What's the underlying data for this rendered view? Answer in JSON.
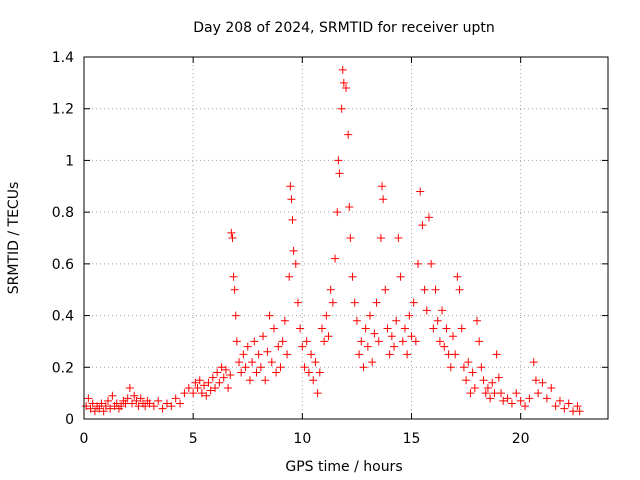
{
  "chart_data": {
    "type": "scatter",
    "title": "Day 208 of 2024, SRMTID for receiver uptn",
    "xlabel": "GPS time / hours",
    "ylabel": "SRMTID / TECUs",
    "xlim": [
      0,
      24
    ],
    "ylim": [
      0,
      1.4
    ],
    "xticks": [
      0,
      5,
      10,
      15,
      20
    ],
    "yticks": [
      0,
      0.2,
      0.4,
      0.6,
      0.8,
      1,
      1.2,
      1.4
    ],
    "xtick_labels": [
      "0",
      "5",
      "10",
      "15",
      "20"
    ],
    "ytick_labels": [
      "0",
      "0.2",
      "0.4",
      "0.6",
      "0.8",
      "1",
      "1.2",
      "1.4"
    ],
    "grid": true,
    "marker": "+",
    "color": "#ff0000",
    "series": [
      {
        "name": "SRMTID",
        "points": [
          [
            0.1,
            0.05
          ],
          [
            0.2,
            0.08
          ],
          [
            0.3,
            0.04
          ],
          [
            0.4,
            0.06
          ],
          [
            0.5,
            0.03
          ],
          [
            0.6,
            0.05
          ],
          [
            0.7,
            0.04
          ],
          [
            0.8,
            0.06
          ],
          [
            0.9,
            0.03
          ],
          [
            1.0,
            0.05
          ],
          [
            1.1,
            0.07
          ],
          [
            1.2,
            0.04
          ],
          [
            1.3,
            0.09
          ],
          [
            1.4,
            0.05
          ],
          [
            1.5,
            0.06
          ],
          [
            1.6,
            0.04
          ],
          [
            1.7,
            0.05
          ],
          [
            1.8,
            0.07
          ],
          [
            1.9,
            0.06
          ],
          [
            2.0,
            0.08
          ],
          [
            2.1,
            0.12
          ],
          [
            2.2,
            0.06
          ],
          [
            2.3,
            0.09
          ],
          [
            2.4,
            0.07
          ],
          [
            2.5,
            0.05
          ],
          [
            2.6,
            0.08
          ],
          [
            2.7,
            0.06
          ],
          [
            2.8,
            0.05
          ],
          [
            2.9,
            0.07
          ],
          [
            3.0,
            0.06
          ],
          [
            3.2,
            0.05
          ],
          [
            3.4,
            0.07
          ],
          [
            3.6,
            0.04
          ],
          [
            3.8,
            0.06
          ],
          [
            4.0,
            0.05
          ],
          [
            4.2,
            0.08
          ],
          [
            4.4,
            0.06
          ],
          [
            4.6,
            0.1
          ],
          [
            4.8,
            0.12
          ],
          [
            5.0,
            0.1
          ],
          [
            5.1,
            0.14
          ],
          [
            5.2,
            0.12
          ],
          [
            5.3,
            0.15
          ],
          [
            5.4,
            0.1
          ],
          [
            5.5,
            0.13
          ],
          [
            5.6,
            0.09
          ],
          [
            5.7,
            0.14
          ],
          [
            5.8,
            0.11
          ],
          [
            5.9,
            0.16
          ],
          [
            6.0,
            0.12
          ],
          [
            6.1,
            0.18
          ],
          [
            6.2,
            0.14
          ],
          [
            6.3,
            0.2
          ],
          [
            6.4,
            0.16
          ],
          [
            6.5,
            0.19
          ],
          [
            6.6,
            0.12
          ],
          [
            6.7,
            0.17
          ],
          [
            6.75,
            0.72
          ],
          [
            6.8,
            0.7
          ],
          [
            6.85,
            0.55
          ],
          [
            6.9,
            0.5
          ],
          [
            6.95,
            0.4
          ],
          [
            7.0,
            0.3
          ],
          [
            7.1,
            0.22
          ],
          [
            7.2,
            0.18
          ],
          [
            7.3,
            0.25
          ],
          [
            7.4,
            0.2
          ],
          [
            7.5,
            0.28
          ],
          [
            7.6,
            0.15
          ],
          [
            7.7,
            0.22
          ],
          [
            7.8,
            0.3
          ],
          [
            7.9,
            0.18
          ],
          [
            8.0,
            0.25
          ],
          [
            8.1,
            0.2
          ],
          [
            8.2,
            0.32
          ],
          [
            8.3,
            0.15
          ],
          [
            8.4,
            0.26
          ],
          [
            8.5,
            0.4
          ],
          [
            8.6,
            0.22
          ],
          [
            8.7,
            0.35
          ],
          [
            8.8,
            0.18
          ],
          [
            8.9,
            0.28
          ],
          [
            9.0,
            0.2
          ],
          [
            9.1,
            0.3
          ],
          [
            9.2,
            0.38
          ],
          [
            9.3,
            0.25
          ],
          [
            9.4,
            0.55
          ],
          [
            9.45,
            0.9
          ],
          [
            9.5,
            0.85
          ],
          [
            9.55,
            0.77
          ],
          [
            9.6,
            0.65
          ],
          [
            9.7,
            0.6
          ],
          [
            9.8,
            0.45
          ],
          [
            9.9,
            0.35
          ],
          [
            10.0,
            0.28
          ],
          [
            10.1,
            0.2
          ],
          [
            10.2,
            0.3
          ],
          [
            10.3,
            0.18
          ],
          [
            10.4,
            0.25
          ],
          [
            10.5,
            0.15
          ],
          [
            10.6,
            0.22
          ],
          [
            10.7,
            0.1
          ],
          [
            10.8,
            0.18
          ],
          [
            10.9,
            0.35
          ],
          [
            11.0,
            0.3
          ],
          [
            11.1,
            0.4
          ],
          [
            11.2,
            0.32
          ],
          [
            11.3,
            0.5
          ],
          [
            11.4,
            0.45
          ],
          [
            11.5,
            0.62
          ],
          [
            11.6,
            0.8
          ],
          [
            11.65,
            1.0
          ],
          [
            11.7,
            0.95
          ],
          [
            11.8,
            1.2
          ],
          [
            11.85,
            1.35
          ],
          [
            11.9,
            1.3
          ],
          [
            12.0,
            1.28
          ],
          [
            12.1,
            1.1
          ],
          [
            12.15,
            0.82
          ],
          [
            12.2,
            0.7
          ],
          [
            12.3,
            0.55
          ],
          [
            12.4,
            0.45
          ],
          [
            12.5,
            0.38
          ],
          [
            12.6,
            0.25
          ],
          [
            12.7,
            0.3
          ],
          [
            12.8,
            0.2
          ],
          [
            12.9,
            0.35
          ],
          [
            13.0,
            0.28
          ],
          [
            13.1,
            0.4
          ],
          [
            13.2,
            0.22
          ],
          [
            13.3,
            0.33
          ],
          [
            13.4,
            0.45
          ],
          [
            13.5,
            0.3
          ],
          [
            13.6,
            0.7
          ],
          [
            13.65,
            0.9
          ],
          [
            13.7,
            0.85
          ],
          [
            13.8,
            0.5
          ],
          [
            13.9,
            0.35
          ],
          [
            14.0,
            0.25
          ],
          [
            14.1,
            0.32
          ],
          [
            14.2,
            0.28
          ],
          [
            14.3,
            0.38
          ],
          [
            14.4,
            0.7
          ],
          [
            14.5,
            0.55
          ],
          [
            14.6,
            0.3
          ],
          [
            14.7,
            0.35
          ],
          [
            14.8,
            0.25
          ],
          [
            14.9,
            0.4
          ],
          [
            15.0,
            0.32
          ],
          [
            15.1,
            0.45
          ],
          [
            15.2,
            0.3
          ],
          [
            15.3,
            0.6
          ],
          [
            15.4,
            0.88
          ],
          [
            15.5,
            0.75
          ],
          [
            15.6,
            0.5
          ],
          [
            15.7,
            0.42
          ],
          [
            15.8,
            0.78
          ],
          [
            15.9,
            0.6
          ],
          [
            16.0,
            0.35
          ],
          [
            16.1,
            0.5
          ],
          [
            16.2,
            0.38
          ],
          [
            16.3,
            0.3
          ],
          [
            16.4,
            0.42
          ],
          [
            16.5,
            0.28
          ],
          [
            16.6,
            0.35
          ],
          [
            16.7,
            0.25
          ],
          [
            16.8,
            0.2
          ],
          [
            16.9,
            0.32
          ],
          [
            17.0,
            0.25
          ],
          [
            17.1,
            0.55
          ],
          [
            17.2,
            0.5
          ],
          [
            17.3,
            0.35
          ],
          [
            17.4,
            0.2
          ],
          [
            17.5,
            0.15
          ],
          [
            17.6,
            0.22
          ],
          [
            17.7,
            0.1
          ],
          [
            17.8,
            0.18
          ],
          [
            17.9,
            0.12
          ],
          [
            18.0,
            0.38
          ],
          [
            18.1,
            0.3
          ],
          [
            18.2,
            0.2
          ],
          [
            18.3,
            0.15
          ],
          [
            18.4,
            0.1
          ],
          [
            18.5,
            0.12
          ],
          [
            18.6,
            0.08
          ],
          [
            18.7,
            0.14
          ],
          [
            18.8,
            0.1
          ],
          [
            18.9,
            0.25
          ],
          [
            19.0,
            0.16
          ],
          [
            19.1,
            0.1
          ],
          [
            19.2,
            0.07
          ],
          [
            19.4,
            0.08
          ],
          [
            19.6,
            0.06
          ],
          [
            19.8,
            0.1
          ],
          [
            20.0,
            0.07
          ],
          [
            20.2,
            0.05
          ],
          [
            20.4,
            0.08
          ],
          [
            20.6,
            0.22
          ],
          [
            20.7,
            0.15
          ],
          [
            20.8,
            0.1
          ],
          [
            21.0,
            0.14
          ],
          [
            21.2,
            0.08
          ],
          [
            21.4,
            0.12
          ],
          [
            21.6,
            0.05
          ],
          [
            21.8,
            0.07
          ],
          [
            22.0,
            0.04
          ],
          [
            22.2,
            0.06
          ],
          [
            22.4,
            0.03
          ],
          [
            22.6,
            0.05
          ],
          [
            22.7,
            0.03
          ]
        ]
      }
    ]
  }
}
